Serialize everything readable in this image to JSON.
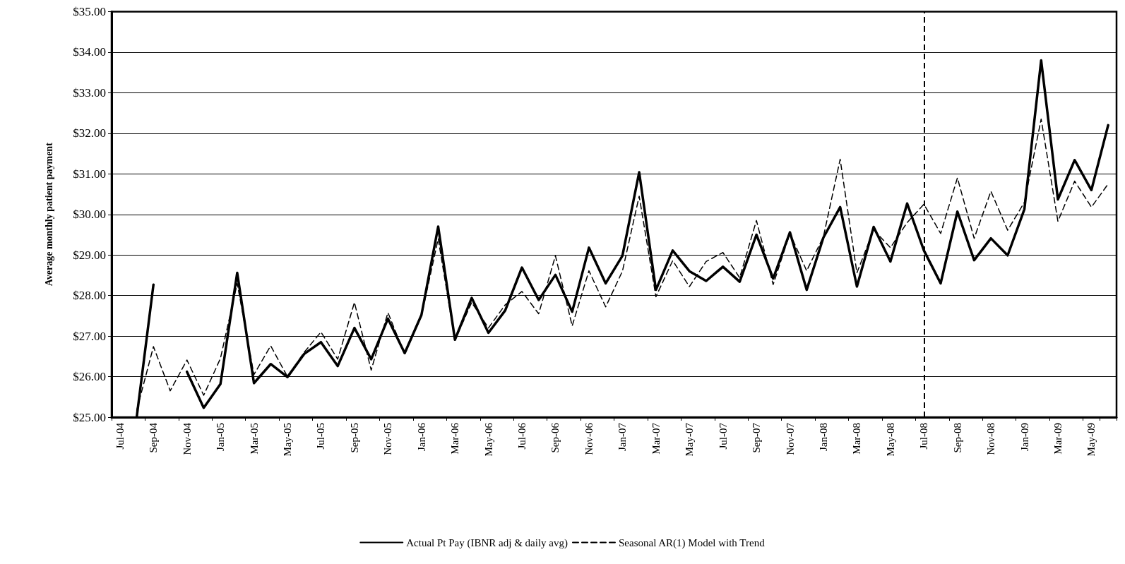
{
  "chart_data": {
    "type": "line",
    "ylabel": "Average monthly patient payment",
    "categories": [
      "Jul-04",
      null,
      "Sep-04",
      null,
      "Nov-04",
      null,
      "Jan-05",
      null,
      "Mar-05",
      null,
      "May-05",
      null,
      "Jul-05",
      null,
      "Sep-05",
      null,
      "Nov-05",
      null,
      "Jan-06",
      null,
      "Mar-06",
      null,
      "May-06",
      null,
      "Jul-06",
      null,
      "Sep-06",
      null,
      "Nov-06",
      null,
      "Jan-07",
      null,
      "Mar-07",
      null,
      "May-07",
      null,
      "Jul-07",
      null,
      "Sep-07",
      null,
      "Nov-07",
      null,
      "Jan-08",
      null,
      "Mar-08",
      null,
      "May-08",
      null,
      "Jul-08",
      null,
      "Sep-08",
      null,
      "Nov-08",
      null,
      "Jan-09",
      null,
      "Mar-09",
      null,
      "May-09",
      null
    ],
    "series": [
      {
        "name": "Actual Pt Pay (IBNR adj & daily avg)",
        "color": "#000000",
        "line_style": "solid",
        "values": [
          null,
          25.0,
          28.27,
          null,
          26.12,
          25.23,
          25.82,
          28.56,
          25.84,
          26.31,
          25.99,
          26.56,
          26.85,
          26.26,
          27.2,
          26.43,
          27.43,
          26.58,
          27.52,
          29.7,
          26.91,
          27.94,
          27.08,
          27.63,
          28.69,
          27.89,
          28.51,
          27.6,
          29.18,
          28.3,
          28.98,
          31.04,
          28.14,
          29.11,
          28.6,
          28.36,
          28.71,
          28.34,
          29.5,
          28.42,
          29.56,
          28.14,
          29.43,
          30.18,
          28.22,
          29.69,
          28.84,
          30.27,
          29.11,
          28.3,
          30.07,
          28.87,
          29.41,
          28.99,
          30.13,
          33.8,
          30.37,
          31.34,
          30.6,
          32.2
        ]
      },
      {
        "name": "Seasonal AR(1) Model with Trend",
        "color": "#000000",
        "line_style": "dashed",
        "values": [
          null,
          25.17,
          26.74,
          25.65,
          26.41,
          25.54,
          26.45,
          28.3,
          26.05,
          26.76,
          26.0,
          26.6,
          27.1,
          26.43,
          27.83,
          26.16,
          27.58,
          26.55,
          27.5,
          29.4,
          26.9,
          27.83,
          27.2,
          27.77,
          28.1,
          27.55,
          28.98,
          27.25,
          28.61,
          27.72,
          28.6,
          30.45,
          27.97,
          28.86,
          28.22,
          28.84,
          29.06,
          28.44,
          29.85,
          28.27,
          29.53,
          28.61,
          29.45,
          31.36,
          28.56,
          29.62,
          29.18,
          29.8,
          30.25,
          29.53,
          30.9,
          29.41,
          30.57,
          29.61,
          30.3,
          32.35,
          29.83,
          30.82,
          30.18,
          30.75
        ]
      }
    ],
    "ylim": [
      25,
      35
    ],
    "yticks": [
      {
        "value": 25,
        "label": "$25.00"
      },
      {
        "value": 26,
        "label": "$26.00"
      },
      {
        "value": 27,
        "label": "$27.00"
      },
      {
        "value": 28,
        "label": "$28.00"
      },
      {
        "value": 29,
        "label": "$29.00"
      },
      {
        "value": 30,
        "label": "$30.00"
      },
      {
        "value": 31,
        "label": "$31.00"
      },
      {
        "value": 32,
        "label": "$32.00"
      },
      {
        "value": 33,
        "label": "$33.00"
      },
      {
        "value": 34,
        "label": "$34.00"
      },
      {
        "value": 35,
        "label": "$35.00"
      }
    ],
    "ref_lines": [
      {
        "axis": "x",
        "value": "Jul-08",
        "color": "#000000",
        "line_style": "dashed"
      }
    ],
    "grid": "y",
    "legend": "bottom",
    "marker": "none"
  }
}
